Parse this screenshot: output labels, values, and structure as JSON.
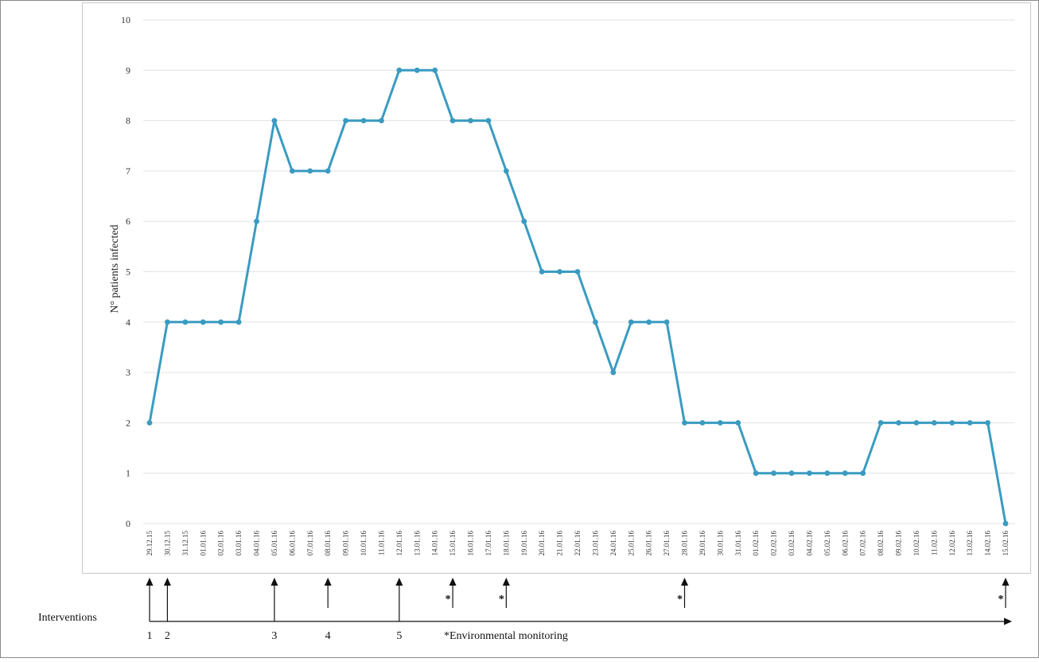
{
  "chart_data": {
    "type": "line",
    "title": "",
    "xlabel": "",
    "ylabel": "N° patients infected",
    "ylim": [
      0,
      10
    ],
    "y_ticks": [
      "0",
      "1",
      "2",
      "3",
      "4",
      "5",
      "6",
      "7",
      "8",
      "9",
      "10"
    ],
    "grid": "horizontal",
    "legend": "none",
    "series_color": "#3A9BC1",
    "categories": [
      "29.12.15",
      "30.12.15",
      "31.12.15",
      "01.01.16",
      "02.01.16",
      "03.01.16",
      "04.01.16",
      "05.01.16",
      "06.01.16",
      "07.01.16",
      "08.01.16",
      "09.01.16",
      "10.01.16",
      "11.01.16",
      "12.01.16",
      "13.01.16",
      "14.01.16",
      "15.01.16",
      "16.01.16",
      "17.01.16",
      "18.01.16",
      "19.01.16",
      "20.01.16",
      "21.01.16",
      "22.01.16",
      "23.01.16",
      "24.01.16",
      "25.01.16",
      "26.01.16",
      "27.01.16",
      "28.01.16",
      "29.01.16",
      "30.01.16",
      "31.01.16",
      "01.02.16",
      "02.02.16",
      "03.02.16",
      "04.02.16",
      "05.02.16",
      "06.02.16",
      "07.02.16",
      "08.02.16",
      "09.02.16",
      "10.02.16",
      "11.02.16",
      "12.02.16",
      "13.02.16",
      "14.02.16",
      "15.02.16"
    ],
    "series": [
      {
        "values": [
          2,
          4,
          4,
          4,
          4,
          4,
          6,
          8,
          7,
          7,
          7,
          8,
          8,
          8,
          9,
          9,
          9,
          8,
          8,
          8,
          7,
          6,
          5,
          5,
          5,
          4,
          3,
          4,
          4,
          4,
          2,
          2,
          2,
          2,
          1,
          1,
          1,
          1,
          1,
          1,
          1,
          2,
          2,
          2,
          2,
          2,
          2,
          2,
          0
        ]
      }
    ],
    "interventions": {
      "row_label": "Interventions",
      "numbered": [
        {
          "label": "1",
          "date": "29.12.15"
        },
        {
          "label": "2",
          "date": "30.12.15"
        },
        {
          "label": "3",
          "date": "05.01.16"
        },
        {
          "label": "4",
          "date": "08.01.16"
        },
        {
          "label": "5",
          "date": "12.01.16"
        }
      ],
      "environmental_marker": "*",
      "environmental_dates": [
        "15.01.16",
        "18.01.16",
        "28.01.16",
        "15.02.16"
      ],
      "footnote": "*Environmental monitoring"
    }
  }
}
